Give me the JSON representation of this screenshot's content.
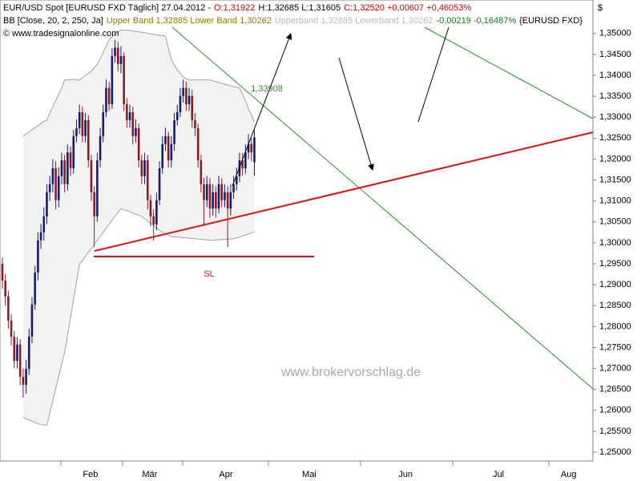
{
  "chart_data": {
    "type": "candlestick",
    "title_parts": [
      {
        "text": "EUR/USD Spot [EURUSD FXD  Täglich] 27.04.2012 -",
        "color": "#000000"
      },
      {
        "text": "O:1,31922",
        "color": "#cc0000"
      },
      {
        "text": "H:1,32685 L:1,31605",
        "color": "#000000"
      },
      {
        "text": "C:1,32520 +0,00607 +0,46053%",
        "color": "#cc0000"
      }
    ],
    "legend_parts": [
      {
        "text": "BB [Close, 20, 2, 250, Ja]",
        "color": "#000000"
      },
      {
        "text": "Upper Band 1,32885 Lower Band 1,30262",
        "color": "#8a7a00"
      },
      {
        "text": "Upperband 1,32885 Lowerband 1,30262",
        "color": "#b8b8b8"
      },
      {
        "text": "-0,00219 -0,16487%",
        "color": "#108010"
      },
      {
        "text": "{EURUSD FXD}",
        "color": "#000000"
      }
    ],
    "source": "© www.tradesignalonline.com",
    "currency": "$",
    "annotations": [
      "1,33908",
      "SL"
    ],
    "watermark": "www.brokervorschlag.de",
    "up_color": "#1c1c6c",
    "down_color": "#8b1a2a",
    "open": [
      1.295,
      1.291,
      1.2872,
      1.2814,
      1.2776,
      1.2718,
      1.2757,
      1.268,
      1.2661,
      1.2699,
      1.2776,
      1.2853,
      1.2929,
      1.3006,
      1.3025,
      1.3063,
      1.3121,
      1.314,
      1.3178,
      1.3102,
      1.3159,
      1.3197,
      1.314,
      1.3216,
      1.3178,
      1.3255,
      1.3274,
      1.3312,
      1.3255,
      1.3293,
      1.3197,
      1.3121,
      1.3063,
      1.3197,
      1.3255,
      1.3312,
      1.337,
      1.3331,
      1.3446,
      1.3466,
      1.3427,
      1.3446,
      1.3331,
      1.3293,
      1.3312,
      1.3255,
      1.3274,
      1.3197,
      1.3159,
      1.3197,
      1.3102,
      1.3063,
      1.3044,
      1.3102,
      1.3178,
      1.3236,
      1.3255,
      1.3197,
      1.3236,
      1.3293,
      1.3312,
      1.3351,
      1.337,
      1.3331,
      1.3351,
      1.3293,
      1.3274,
      1.3197,
      1.314,
      1.3102,
      1.314,
      1.3082,
      1.3121,
      1.3082,
      1.314,
      1.3102,
      1.3121,
      1.3082,
      1.3121,
      1.314,
      1.3159,
      1.3197,
      1.3178,
      1.3216,
      1.3236,
      1.31922
    ],
    "high": [
      1.2965,
      1.2925,
      1.2885,
      1.283,
      1.279,
      1.2775,
      1.277,
      1.27,
      1.272,
      1.2795,
      1.287,
      1.2945,
      1.3025,
      1.3045,
      1.3085,
      1.314,
      1.316,
      1.32,
      1.3195,
      1.318,
      1.3215,
      1.321,
      1.3235,
      1.323,
      1.327,
      1.3295,
      1.333,
      1.3325,
      1.331,
      1.3305,
      1.321,
      1.3135,
      1.3215,
      1.3275,
      1.333,
      1.339,
      1.3385,
      1.3465,
      1.3485,
      1.348,
      1.347,
      1.3455,
      1.3345,
      1.333,
      1.3325,
      1.3295,
      1.3285,
      1.321,
      1.3215,
      1.321,
      1.3115,
      1.308,
      1.312,
      1.3195,
      1.3255,
      1.3275,
      1.3265,
      1.3255,
      1.331,
      1.333,
      1.337,
      1.339,
      1.3385,
      1.337,
      1.3365,
      1.331,
      1.3285,
      1.321,
      1.3155,
      1.316,
      1.3155,
      1.314,
      1.3135,
      1.316,
      1.3155,
      1.314,
      1.3135,
      1.314,
      1.316,
      1.318,
      1.3215,
      1.3215,
      1.3235,
      1.326,
      1.325,
      1.32685
    ],
    "low": [
      1.289,
      1.285,
      1.2795,
      1.2755,
      1.27,
      1.27,
      1.266,
      1.263,
      1.264,
      1.2685,
      1.276,
      1.284,
      1.291,
      1.2985,
      1.3005,
      1.3045,
      1.31,
      1.312,
      1.308,
      1.3085,
      1.314,
      1.312,
      1.3125,
      1.316,
      1.3165,
      1.324,
      1.326,
      1.324,
      1.324,
      1.318,
      1.31,
      1.299,
      1.305,
      1.318,
      1.324,
      1.33,
      1.3315,
      1.332,
      1.343,
      1.341,
      1.3405,
      1.3315,
      1.3275,
      1.3275,
      1.3235,
      1.324,
      1.318,
      1.314,
      1.314,
      1.308,
      1.304,
      1.3005,
      1.303,
      1.309,
      1.3165,
      1.322,
      1.318,
      1.318,
      1.322,
      1.328,
      1.33,
      1.3335,
      1.3315,
      1.3315,
      1.3275,
      1.3255,
      1.318,
      1.312,
      1.304,
      1.3085,
      1.306,
      1.3065,
      1.306,
      1.307,
      1.3085,
      1.3085,
      1.299,
      1.3065,
      1.3105,
      1.3125,
      1.3145,
      1.316,
      1.3165,
      1.32,
      1.3195,
      1.31605
    ],
    "close": [
      1.291,
      1.2872,
      1.2814,
      1.2776,
      1.2718,
      1.2757,
      1.268,
      1.2661,
      1.2699,
      1.2776,
      1.2853,
      1.2929,
      1.3006,
      1.3025,
      1.3063,
      1.3121,
      1.314,
      1.3178,
      1.3102,
      1.3159,
      1.3197,
      1.314,
      1.3216,
      1.3178,
      1.3255,
      1.3274,
      1.3312,
      1.3255,
      1.3293,
      1.3197,
      1.3121,
      1.3063,
      1.3197,
      1.3255,
      1.3312,
      1.337,
      1.3331,
      1.3446,
      1.3466,
      1.3427,
      1.3446,
      1.3331,
      1.3293,
      1.3312,
      1.3255,
      1.3274,
      1.3197,
      1.3159,
      1.3197,
      1.3102,
      1.3063,
      1.3044,
      1.3102,
      1.3178,
      1.3236,
      1.3255,
      1.3197,
      1.3236,
      1.3293,
      1.3312,
      1.3351,
      1.337,
      1.3331,
      1.3351,
      1.3293,
      1.3274,
      1.3197,
      1.314,
      1.3102,
      1.314,
      1.3082,
      1.3121,
      1.3082,
      1.314,
      1.3102,
      1.3121,
      1.3082,
      1.3121,
      1.314,
      1.3159,
      1.3197,
      1.3178,
      1.3216,
      1.3236,
      1.3216,
      1.3252
    ],
    "bands": {
      "color": "#a0a0a0",
      "fill": "#f2f2f2",
      "upper": [
        null,
        null,
        null,
        null,
        null,
        null,
        null,
        1.3255,
        1.326,
        1.3265,
        1.327,
        1.3275,
        1.328,
        1.3285,
        1.329,
        1.3293,
        1.331,
        1.3325,
        1.334,
        1.3355,
        1.337,
        1.3389,
        1.3389,
        1.339,
        1.339,
        1.3389,
        1.3389,
        1.3395,
        1.34,
        1.3405,
        1.341,
        1.3418,
        1.3427,
        1.344,
        1.3455,
        1.347,
        1.3485,
        1.3492,
        1.3498,
        1.3504,
        1.3508,
        1.3508,
        1.3508,
        1.3507,
        1.3506,
        1.3505,
        1.3504,
        1.3503,
        1.3502,
        1.35,
        1.3499,
        1.3498,
        1.3497,
        1.3496,
        1.3495,
        1.3494,
        1.3465,
        1.3437,
        1.3425,
        1.3413,
        1.3405,
        1.3397,
        1.3392,
        1.3389,
        1.3389,
        1.3389,
        1.3389,
        1.3389,
        1.3389,
        1.3389,
        1.3389,
        1.3387,
        1.3385,
        1.3383,
        1.3381,
        1.3379,
        1.3377,
        1.3375,
        1.3373,
        1.3371,
        1.337,
        1.3355,
        1.334,
        1.332,
        1.3305,
        1.32885
      ],
      "lower": [
        null,
        null,
        null,
        null,
        null,
        null,
        null,
        1.2584,
        1.258,
        1.2577,
        1.2574,
        1.2571,
        1.2568,
        1.2566,
        1.2565,
        1.2565,
        1.2594,
        1.2623,
        1.2652,
        1.2681,
        1.271,
        1.2738,
        1.278,
        1.2822,
        1.2864,
        1.2906,
        1.2948,
        1.2958,
        1.2968,
        1.2977,
        1.2986,
        1.2996,
        1.3006,
        1.3015,
        1.3025,
        1.3035,
        1.3044,
        1.3054,
        1.3063,
        1.3073,
        1.3082,
        1.3079,
        1.3077,
        1.3074,
        1.3071,
        1.3068,
        1.3066,
        1.3063,
        1.3058,
        1.3052,
        1.3047,
        1.3041,
        1.3036,
        1.303,
        1.3025,
        1.3022,
        1.3018,
        1.3015,
        1.3014,
        1.3014,
        1.3013,
        1.3012,
        1.3012,
        1.3011,
        1.301,
        1.301,
        1.3009,
        1.3008,
        1.3008,
        1.3007,
        1.3006,
        1.3006,
        1.3007,
        1.3007,
        1.3008,
        1.3008,
        1.3009,
        1.3009,
        1.301,
        1.3012,
        1.3014,
        1.3016,
        1.3019,
        1.3021,
        1.3023,
        1.30262
      ]
    },
    "xlim": [
      -0.8,
      199.2
    ],
    "xticks": [
      {
        "value": 29.7,
        "label": "Feb"
      },
      {
        "value": 49.7,
        "label": "Mär"
      },
      {
        "value": 75.4,
        "label": "Apr"
      },
      {
        "value": 103.5,
        "label": "Mai"
      },
      {
        "value": 136,
        "label": "Jun"
      },
      {
        "value": 167.3,
        "label": "Jul"
      },
      {
        "value": 191,
        "label": "Aug"
      }
    ],
    "ylim": [
      1.2479,
      1.358
    ],
    "yticks": [
      {
        "value": 1.25,
        "label": "1,25000"
      },
      {
        "value": 1.255,
        "label": "1,25500"
      },
      {
        "value": 1.26,
        "label": "1,26000"
      },
      {
        "value": 1.265,
        "label": "1,26500"
      },
      {
        "value": 1.27,
        "label": "1,27000"
      },
      {
        "value": 1.275,
        "label": "1,27500"
      },
      {
        "value": 1.28,
        "label": "1,28000"
      },
      {
        "value": 1.285,
        "label": "1,28500"
      },
      {
        "value": 1.29,
        "label": "1,29000"
      },
      {
        "value": 1.295,
        "label": "1,29500"
      },
      {
        "value": 1.3,
        "label": "1,30000"
      },
      {
        "value": 1.305,
        "label": "1,30500"
      },
      {
        "value": 1.31,
        "label": "1,31000"
      },
      {
        "value": 1.315,
        "label": "1,31500"
      },
      {
        "value": 1.32,
        "label": "1,32000"
      },
      {
        "value": 1.325,
        "label": "1,32500"
      },
      {
        "value": 1.33,
        "label": "1,33000"
      },
      {
        "value": 1.335,
        "label": "1,33500"
      },
      {
        "value": 1.34,
        "label": "1,34000"
      },
      {
        "value": 1.345,
        "label": "1,34500"
      },
      {
        "value": 1.35,
        "label": "1,35000"
      }
    ],
    "grid": false
  }
}
